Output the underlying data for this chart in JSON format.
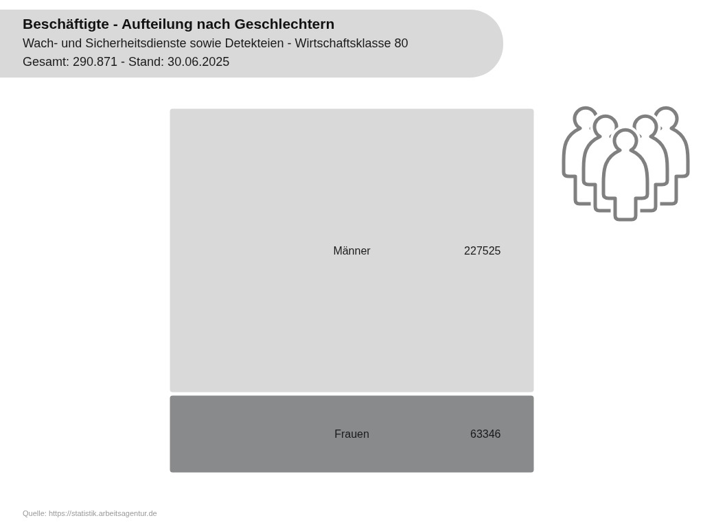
{
  "chart_data": {
    "type": "other",
    "title": "Beschäftigte - Aufteilung nach Geschlechtern",
    "subtitle": "Wach- und Sicherheitsdienste sowie Detekteien - Wirtschaftsklasse 80",
    "annotations": [
      "Gesamt: 290.871 - Stand: 30.06.2025",
      "Quelle: https://statistik.arbeitsagentur.de"
    ],
    "categories": [
      "Männer",
      "Frauen"
    ],
    "values": [
      227525,
      63346
    ],
    "colors": [
      "#d9d9d9",
      "#898a8c"
    ],
    "data_labels": true
  }
}
